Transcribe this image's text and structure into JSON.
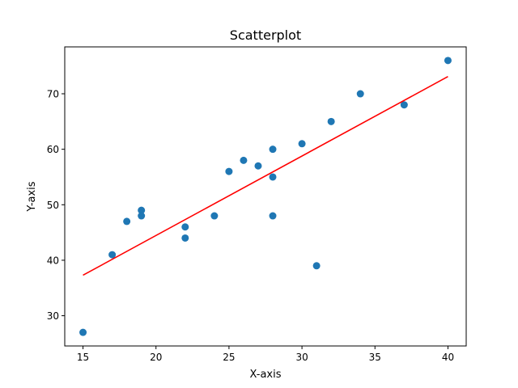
{
  "chart_data": {
    "type": "scatter",
    "title": "Scatterplot",
    "xlabel": "X-axis",
    "ylabel": "Y-axis",
    "xlim": [
      13.75,
      41.25
    ],
    "ylim": [
      24.55,
      78.45
    ],
    "x_ticks": [
      15,
      20,
      25,
      30,
      35,
      40
    ],
    "y_ticks": [
      30,
      40,
      50,
      60,
      70
    ],
    "grid": false,
    "series": [
      {
        "type": "scatter",
        "color": "#1f77b4",
        "points": [
          {
            "x": 15,
            "y": 27
          },
          {
            "x": 17,
            "y": 41
          },
          {
            "x": 18,
            "y": 47
          },
          {
            "x": 19,
            "y": 49
          },
          {
            "x": 19,
            "y": 48
          },
          {
            "x": 22,
            "y": 46
          },
          {
            "x": 22,
            "y": 44
          },
          {
            "x": 24,
            "y": 48
          },
          {
            "x": 25,
            "y": 56
          },
          {
            "x": 26,
            "y": 58
          },
          {
            "x": 27,
            "y": 57
          },
          {
            "x": 28,
            "y": 60
          },
          {
            "x": 28,
            "y": 55
          },
          {
            "x": 28,
            "y": 48
          },
          {
            "x": 30,
            "y": 61
          },
          {
            "x": 31,
            "y": 39
          },
          {
            "x": 32,
            "y": 65
          },
          {
            "x": 34,
            "y": 70
          },
          {
            "x": 37,
            "y": 68
          },
          {
            "x": 40,
            "y": 76
          }
        ]
      },
      {
        "type": "line",
        "color": "#ff0000",
        "points": [
          {
            "x": 15,
            "y": 37.3
          },
          {
            "x": 40,
            "y": 73.1
          }
        ]
      }
    ]
  }
}
